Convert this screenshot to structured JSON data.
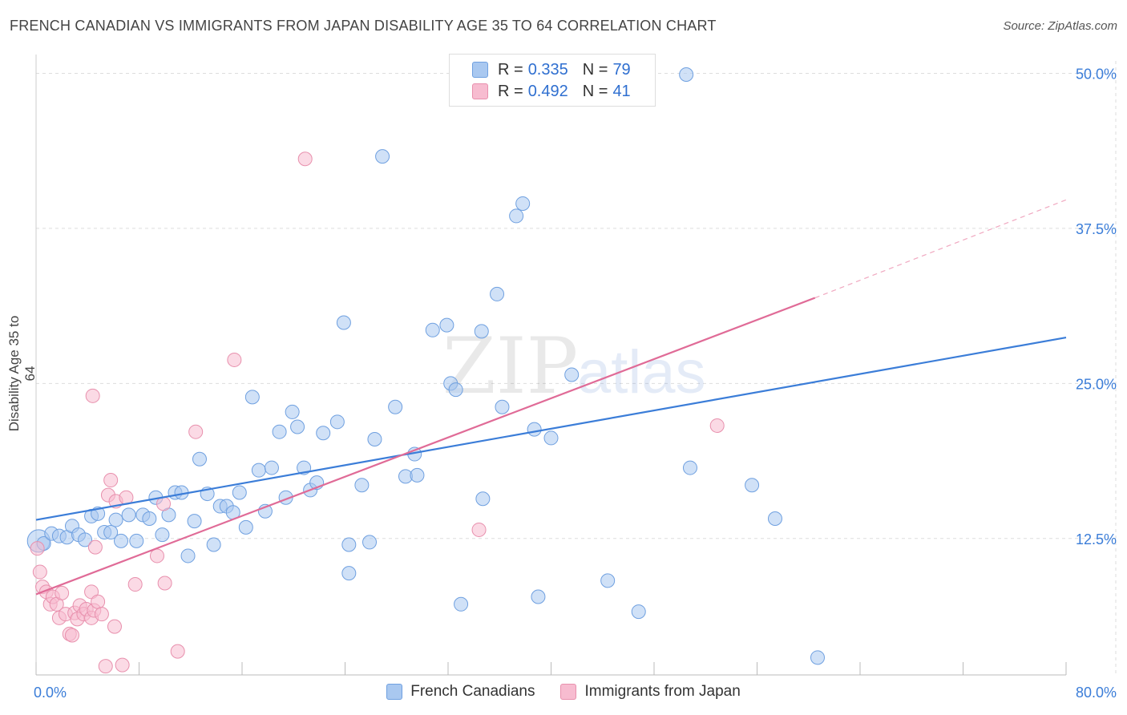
{
  "header": {
    "title": "FRENCH CANADIAN VS IMMIGRANTS FROM JAPAN DISABILITY AGE 35 TO 64 CORRELATION CHART",
    "source": "Source: ZipAtlas.com"
  },
  "legend": {
    "rows": [
      {
        "r_label": "R =",
        "r_value": "0.335",
        "n_label": "N =",
        "n_value": "79",
        "color": "#a9c8f0",
        "border": "#6fa0e0"
      },
      {
        "r_label": "R =",
        "r_value": "0.492",
        "n_label": "N =",
        "n_value": "41",
        "color": "#f7bcd0",
        "border": "#e890ad"
      }
    ]
  },
  "bottom_legend": {
    "items": [
      {
        "label": "French Canadians",
        "color": "#a9c8f0",
        "border": "#6fa0e0"
      },
      {
        "label": "Immigrants from Japan",
        "color": "#f7bcd0",
        "border": "#e890ad"
      }
    ]
  },
  "watermark": {
    "zip": "ZIP",
    "atlas": "atlas"
  },
  "chart_data": {
    "type": "scatter",
    "title": "FRENCH CANADIAN VS IMMIGRANTS FROM JAPAN DISABILITY AGE 35 TO 64 CORRELATION CHART",
    "xlabel": "",
    "ylabel": "Disability Age 35 to 64",
    "xlim": [
      0,
      80
    ],
    "ylim": [
      1.5,
      51
    ],
    "x_tick_labels": [
      {
        "value": 0,
        "label": "0.0%"
      },
      {
        "value": 80,
        "label": "80.0%"
      }
    ],
    "y_tick_labels": [
      {
        "value": 12.5,
        "label": "12.5%"
      },
      {
        "value": 25,
        "label": "25.0%"
      },
      {
        "value": 37.5,
        "label": "37.5%"
      },
      {
        "value": 50,
        "label": "50.0%"
      }
    ],
    "grid": true,
    "colors": {
      "blue": "#3b7dd8",
      "pink": "#e06b97",
      "blue_fill": "#a9c8f0",
      "pink_fill": "#f7bcd0",
      "tick_text": "#3b7dd8"
    },
    "series": [
      {
        "name": "French Canadians",
        "color": "#3b7dd8",
        "r": 0.335,
        "n": 79,
        "trend": {
          "x0": 0,
          "y0": 14.0,
          "x1": 80,
          "y1": 28.7
        },
        "points": [
          [
            0.2,
            12.3
          ],
          [
            0.6,
            12.1
          ],
          [
            1.2,
            12.9
          ],
          [
            1.8,
            12.7
          ],
          [
            2.4,
            12.6
          ],
          [
            2.8,
            13.5
          ],
          [
            3.3,
            12.8
          ],
          [
            3.8,
            12.4
          ],
          [
            4.3,
            14.3
          ],
          [
            4.8,
            14.5
          ],
          [
            5.3,
            13.0
          ],
          [
            5.8,
            13.0
          ],
          [
            6.2,
            14.0
          ],
          [
            6.6,
            12.3
          ],
          [
            7.2,
            14.4
          ],
          [
            7.8,
            12.3
          ],
          [
            8.3,
            14.4
          ],
          [
            8.8,
            14.1
          ],
          [
            9.3,
            15.8
          ],
          [
            9.8,
            12.8
          ],
          [
            10.3,
            14.4
          ],
          [
            10.8,
            16.2
          ],
          [
            11.3,
            16.2
          ],
          [
            11.8,
            11.1
          ],
          [
            12.3,
            13.9
          ],
          [
            12.7,
            18.9
          ],
          [
            13.3,
            16.1
          ],
          [
            13.8,
            12.0
          ],
          [
            14.3,
            15.1
          ],
          [
            14.8,
            15.1
          ],
          [
            15.3,
            14.6
          ],
          [
            15.8,
            16.2
          ],
          [
            16.3,
            13.4
          ],
          [
            16.8,
            23.9
          ],
          [
            17.3,
            18.0
          ],
          [
            17.8,
            14.7
          ],
          [
            18.3,
            18.2
          ],
          [
            18.9,
            21.1
          ],
          [
            19.4,
            15.8
          ],
          [
            19.9,
            22.7
          ],
          [
            20.3,
            21.5
          ],
          [
            20.8,
            18.2
          ],
          [
            21.3,
            16.4
          ],
          [
            21.8,
            17.0
          ],
          [
            22.3,
            21.0
          ],
          [
            23.4,
            21.9
          ],
          [
            23.9,
            29.9
          ],
          [
            24.3,
            9.7
          ],
          [
            24.3,
            12.0
          ],
          [
            25.3,
            16.8
          ],
          [
            25.9,
            12.2
          ],
          [
            26.3,
            20.5
          ],
          [
            26.9,
            43.3
          ],
          [
            27.9,
            23.1
          ],
          [
            28.7,
            17.5
          ],
          [
            29.4,
            19.3
          ],
          [
            29.6,
            17.6
          ],
          [
            30.8,
            29.3
          ],
          [
            31.9,
            29.7
          ],
          [
            32.2,
            25.0
          ],
          [
            32.6,
            24.5
          ],
          [
            33.0,
            7.2
          ],
          [
            34.6,
            29.2
          ],
          [
            34.7,
            15.7
          ],
          [
            35.8,
            32.2
          ],
          [
            36.2,
            23.1
          ],
          [
            37.3,
            38.5
          ],
          [
            37.8,
            39.5
          ],
          [
            38.7,
            21.3
          ],
          [
            39.0,
            7.8
          ],
          [
            40.0,
            20.6
          ],
          [
            41.6,
            25.7
          ],
          [
            44.4,
            9.1
          ],
          [
            46.8,
            6.6
          ],
          [
            50.5,
            49.9
          ],
          [
            50.8,
            18.2
          ],
          [
            55.6,
            16.8
          ],
          [
            57.4,
            14.1
          ],
          [
            60.7,
            2.9
          ]
        ]
      },
      {
        "name": "Immigrants from Japan",
        "color": "#e06b97",
        "r": 0.492,
        "n": 41,
        "trend": {
          "x0": 0,
          "y0": 8.0,
          "x1": 60.5,
          "y1": 31.9,
          "dash_x1": 80,
          "dash_y1": 39.8
        },
        "points": [
          [
            0.3,
            9.8
          ],
          [
            0.5,
            8.6
          ],
          [
            0.8,
            8.2
          ],
          [
            1.1,
            7.2
          ],
          [
            1.3,
            7.8
          ],
          [
            1.6,
            7.2
          ],
          [
            1.8,
            6.1
          ],
          [
            2.0,
            8.1
          ],
          [
            2.3,
            6.4
          ],
          [
            2.6,
            4.8
          ],
          [
            2.8,
            4.7
          ],
          [
            3.0,
            6.5
          ],
          [
            3.2,
            6.0
          ],
          [
            3.4,
            7.1
          ],
          [
            3.7,
            6.4
          ],
          [
            3.9,
            6.8
          ],
          [
            4.3,
            6.1
          ],
          [
            4.3,
            8.2
          ],
          [
            4.5,
            6.7
          ],
          [
            4.4,
            24.0
          ],
          [
            4.6,
            11.8
          ],
          [
            4.8,
            7.4
          ],
          [
            5.1,
            6.4
          ],
          [
            5.4,
            2.2
          ],
          [
            5.6,
            16.0
          ],
          [
            5.8,
            17.2
          ],
          [
            6.1,
            5.4
          ],
          [
            6.2,
            15.5
          ],
          [
            6.7,
            2.3
          ],
          [
            7.0,
            15.8
          ],
          [
            7.7,
            8.8
          ],
          [
            9.4,
            11.1
          ],
          [
            9.9,
            15.3
          ],
          [
            10.0,
            8.9
          ],
          [
            11.0,
            3.4
          ],
          [
            12.4,
            21.1
          ],
          [
            15.4,
            26.9
          ],
          [
            20.9,
            43.1
          ],
          [
            34.4,
            13.2
          ],
          [
            52.9,
            21.6
          ],
          [
            0.1,
            11.7
          ]
        ]
      }
    ]
  }
}
